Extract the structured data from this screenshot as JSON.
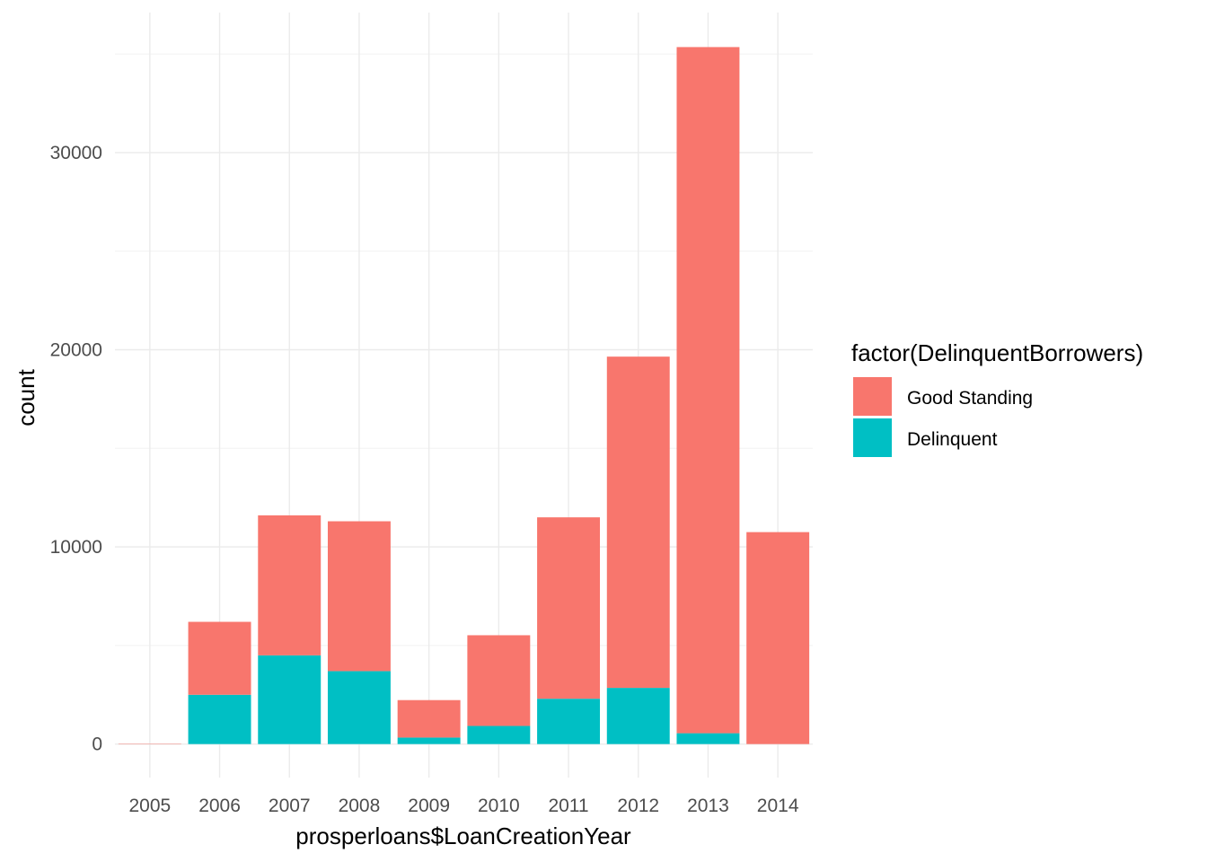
{
  "chart_data": {
    "type": "bar",
    "stacked": true,
    "categories": [
      "2005",
      "2006",
      "2007",
      "2008",
      "2009",
      "2010",
      "2011",
      "2012",
      "2013",
      "2014"
    ],
    "series": [
      {
        "name": "Good Standing",
        "color": "#F8766D",
        "values": [
          20,
          3700,
          7100,
          7600,
          1900,
          4600,
          9200,
          16800,
          34800,
          10750
        ]
      },
      {
        "name": "Delinquent",
        "color": "#00BFC4",
        "values": [
          0,
          2500,
          4500,
          3700,
          330,
          920,
          2300,
          2850,
          550,
          0
        ]
      }
    ],
    "xlabel": "prosperloans$LoanCreationYear",
    "ylabel": "count",
    "yticks": [
      0,
      10000,
      20000,
      30000
    ],
    "ylim": [
      -1700,
      37100
    ],
    "grid": true,
    "legend": {
      "title": "factor(DelinquentBorrowers)",
      "position": "right"
    }
  }
}
